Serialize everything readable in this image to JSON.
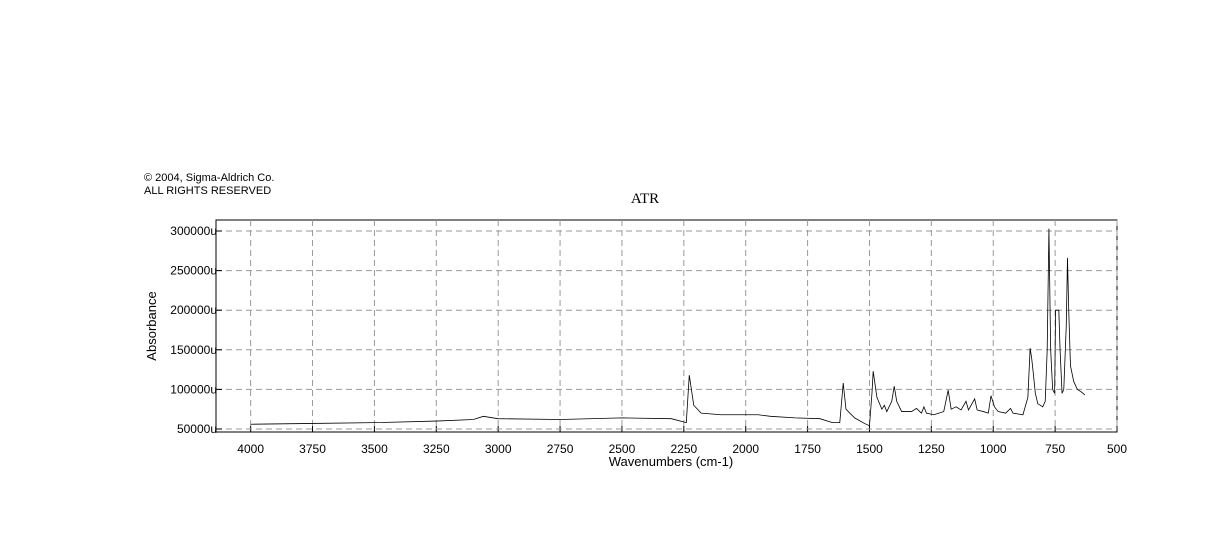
{
  "chart_data": {
    "type": "line",
    "title": "ATR",
    "copyright": [
      "© 2004, Sigma-Aldrich Co.",
      "ALL RIGHTS RESERVED"
    ],
    "xlabel": "Wavenumbers (cm-1)",
    "ylabel": "Absorbance",
    "xlim": [
      4140,
      500
    ],
    "ylim": [
      46200,
      313900
    ],
    "xticks": [
      4000,
      3750,
      3500,
      3250,
      3000,
      2750,
      2500,
      2250,
      2000,
      1750,
      1500,
      1250,
      1000,
      750,
      500
    ],
    "yticks": [
      {
        "value": 50000,
        "label": "50000u"
      },
      {
        "value": 100000,
        "label": "100000u"
      },
      {
        "value": 150000,
        "label": "150000u"
      },
      {
        "value": 200000,
        "label": "200000u"
      },
      {
        "value": 250000,
        "label": "250000u"
      },
      {
        "value": 300000,
        "label": "300000u"
      }
    ],
    "grid": true,
    "series": [
      {
        "color": "#000000",
        "x": [
          4000,
          3750,
          3500,
          3250,
          3100,
          3060,
          3000,
          2750,
          2500,
          2300,
          2240,
          2228,
          2210,
          2180,
          2100,
          2000,
          1950,
          1900,
          1800,
          1700,
          1650,
          1620,
          1606,
          1595,
          1560,
          1520,
          1500,
          1490,
          1485,
          1470,
          1450,
          1440,
          1430,
          1410,
          1400,
          1390,
          1370,
          1330,
          1310,
          1290,
          1280,
          1270,
          1240,
          1200,
          1182,
          1170,
          1150,
          1130,
          1110,
          1100,
          1075,
          1065,
          1040,
          1020,
          1009,
          995,
          980,
          950,
          930,
          920,
          880,
          860,
          851,
          845,
          838,
          830,
          820,
          800,
          790,
          782,
          775,
          768,
          760,
          752,
          748,
          735,
          730,
          722,
          715,
          705,
          700,
          695,
          688,
          675,
          660,
          645,
          630
        ],
        "values": [
          56000,
          57000,
          58000,
          60000,
          62000,
          66000,
          63000,
          62000,
          64000,
          63000,
          58000,
          118000,
          80000,
          70000,
          68000,
          68000,
          68000,
          66000,
          64000,
          63000,
          58000,
          58000,
          108000,
          75000,
          64000,
          57000,
          54000,
          95000,
          123000,
          90000,
          75000,
          80000,
          72000,
          85000,
          104000,
          85000,
          72000,
          72000,
          76000,
          70000,
          78000,
          70000,
          68000,
          72000,
          99000,
          75000,
          78000,
          74000,
          85000,
          74000,
          88000,
          74000,
          72000,
          70000,
          92000,
          78000,
          72000,
          70000,
          76000,
          70000,
          68000,
          90000,
          152000,
          140000,
          120000,
          95000,
          82000,
          78000,
          85000,
          150000,
          303000,
          150000,
          100000,
          95000,
          200000,
          200000,
          150000,
          95000,
          100000,
          180000,
          266000,
          200000,
          130000,
          110000,
          100000,
          97000,
          93000
        ]
      }
    ]
  }
}
